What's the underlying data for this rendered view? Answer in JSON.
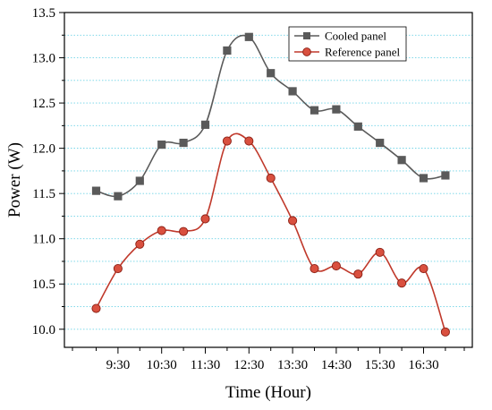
{
  "chart_data": {
    "type": "line",
    "title": "",
    "xlabel": "Time (Hour)",
    "ylabel": "Power (W)",
    "x": [
      "9:00",
      "9:30",
      "10:00",
      "10:30",
      "11:00",
      "11:30",
      "12:00",
      "12:30",
      "13:00",
      "13:30",
      "14:00",
      "14:30",
      "15:00",
      "15:30",
      "16:00",
      "16:30",
      "17:00"
    ],
    "x_tick_labels": [
      "9:30",
      "10:30",
      "11:30",
      "12:30",
      "13:30",
      "14:30",
      "15:30",
      "16:30"
    ],
    "ylim": [
      9.8,
      13.5
    ],
    "y_ticks": [
      10.0,
      10.5,
      11.0,
      11.5,
      12.0,
      12.5,
      13.0,
      13.5
    ],
    "y_tick_labels": [
      "10.0",
      "10.5",
      "11.0",
      "11.5",
      "12.0",
      "12.5",
      "13.0",
      "13.5"
    ],
    "grid": "horizontal dotted cyan",
    "legend_position": "top-right",
    "series": [
      {
        "name": "Cooled panel",
        "color": "#5a5a5a",
        "marker": "square",
        "values": [
          11.53,
          11.47,
          11.64,
          12.04,
          12.06,
          12.26,
          13.08,
          13.23,
          12.83,
          12.63,
          12.42,
          12.43,
          12.24,
          12.06,
          11.87,
          11.67,
          11.7
        ]
      },
      {
        "name": "Reference panel",
        "color": "#c0392b",
        "marker": "circle",
        "values": [
          10.23,
          10.67,
          10.94,
          11.09,
          11.08,
          11.22,
          12.08,
          12.08,
          11.67,
          11.2,
          10.67,
          10.7,
          10.61,
          10.85,
          10.51,
          10.67,
          9.97
        ]
      }
    ]
  }
}
